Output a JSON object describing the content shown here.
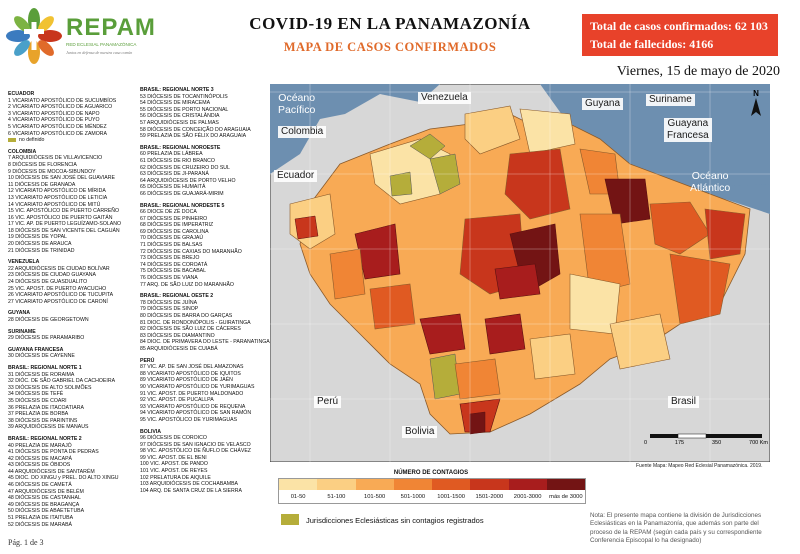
{
  "header": {
    "brand": "REPAM",
    "brand_sub": "RED ECLESIAL PANAMAZÓNICA",
    "brand_motto": "Juntos en defensa de nuestra casa común",
    "title": "COVID-19 EN LA PANAMAZONÍA",
    "subtitle": "MAPA DE CASOS CONFIRMADOS",
    "total_cases": "Total de casos confirmados: 62 103",
    "total_deaths": "Total de fallecidos: 4166",
    "date": "Viernes, 15 de mayo de 2020"
  },
  "colors": {
    "accent": "#e8422a",
    "brand": "#5a9e3a",
    "no_contagion": "#b5ad3a",
    "water": "#6d8fb0",
    "land": "#d7d7d7"
  },
  "index_left": {
    "ecuador_title": "ECUADOR",
    "ecuador": [
      "1 VICARIATO APOSTÓLICO DE SUCUMBÍOS",
      "2 VICARIATO APOSTÓLICO DE AGUARICO",
      "3 VICARIATO APOSTÓLICO DE NAPO",
      "4 VICARIATO APOSTÓLICO DE PUYO",
      "5 VICARIATO APOSTÓLICO DE MÉNDEZ",
      "6 VICARIATO APOSTÓLICO DE ZAMORA"
    ],
    "nd_label": "no definido",
    "colombia_title": "COLOMBIA",
    "colombia": [
      "7 ARQUIDIÓCESIS DE VILLAVICENCIO",
      "8 DIÓCESIS DE FLORENCIA",
      "9 DIÓCESIS DE MOCOA-SIBUNDOY",
      "10 DIÓCESIS DE SAN JOSÉ DEL GUAVIARE",
      "11 DIÓCESIS DE GRANADA",
      "12 VICARIATO APOSTÓLICO DE MÍRIDA",
      "13 VICARIATO APOSTÓLICO DE LETICIA",
      "14 VICARIATO APOSTÓLICO DE MITÚ",
      "15 VIC. APOSTÓLICO DE PUERTO CARREÑO",
      "16 VIC. APOSTÓLICO DE PUERTO GAITÁN",
      "17 VIC. AP. DE PUERTO LEGUÍZAMO-SOLANO",
      "18 DIÓCESIS DE SAN VICENTE DEL CAGUÁN",
      "19 DIÓCESIS DE YOPAL",
      "20 DIÓCESIS DE ARAUCA",
      "21 DIÓCESIS DE TRINIDAD"
    ],
    "venezuela_title": "VENEZUELA",
    "venezuela": [
      "22 ARQUIDIÓCESIS DE CIUDAD BOLÍVAR",
      "23 DIÓCESIS DE CIUDAD GUAYANA",
      "24 DIÓCESIS DE GUASDUALITO",
      "25 VIC. APOST. DE PUERTO AYACUCHO",
      "26 VICARIATO APOSTÓLICO DE TUCUPITA",
      "27 VICARIATO APOSTÓLICO DE CARONÍ"
    ],
    "guyana_title": "GUYANA",
    "guyana": [
      "28 DIÓCESIS DE GEORGETOWN"
    ],
    "suriname_title": "SURINAME",
    "suriname": [
      "29 DIÓCESIS DE PARAMARIBO"
    ],
    "guayana_title": "GUAYANA FRANCESA",
    "guayana": [
      "30 DIÓCESIS DE CAYENNE"
    ],
    "brasil1_title": "BRASIL: REGIONAL NORTE 1",
    "brasil1": [
      "31 DIÓCESIS DE RORAIMA",
      "32 DIÓC. DE SÃO GABRIEL DA CACHOEIRA",
      "33 DIÓCESIS DE ALTO SOLIMÕES",
      "34 DIÓCESIS DE TEFÉ",
      "35 DIÓCESIS DE COARI",
      "36 PRELAZIA DE ITACOATIARA",
      "37 PRELAZIA DE BORBA",
      "38 DIÓCESIS DE PARINTINS",
      "39 ARQUIDIÓCESIS DE MANAUS"
    ],
    "brasil2_title": "BRASIL: REGIONAL NORTE 2",
    "brasil2": [
      "40 PRELAZIA DE MARAJÓ",
      "41 DIÓCESIS DE PONTA DE PEDRAS",
      "42 DIÓCESIS DE MACAPÁ",
      "43 DIÓCESIS DE ÓBIDOS",
      "44 ARQUIDIÓCESIS DE SANTARÉM",
      "45 DIOC. DO XINGU y PREL. DO ALTO XINGU",
      "46 DIÓCESIS DE CAMETÁ",
      "47 ARQUIDIÓCESIS DE BELÉM",
      "48 DIÓCESIS DE CASTANHAL",
      "49 DIÓCESIS DE BRAGANÇA",
      "50 DIÓCESIS DE ABAETETUBA",
      "51 PRELAZIA DE ITAITUBA",
      "52 DIÓCESIS DE MARABÁ"
    ]
  },
  "index_right": {
    "brasil3_title": "BRASIL: REGIONAL NORTE 3",
    "brasil3": [
      "53 DIÓCESIS DE TOCANTINÓPOLIS",
      "54 DIÓCESIS DE MIRACEMA",
      "55 DIÓCESIS DE PORTO NACIONAL",
      "56 DIÓCESIS DE CRISTALÂNDIA",
      "57 ARQUIDIÓCESIS DE PALMAS",
      "58 DIÓCESIS DE CONCEIÇÃO DO ARAGUAIA",
      "59 PRELAZIA DE SÃO FÉLIX DO ARAGUAIA"
    ],
    "noroeste_title": "BRASIL: REGIONAL NOROESTE",
    "noroeste": [
      "60 PRELAZIA DE LÁBREA",
      "61 DIÓCESIS DE RIO BRANCO",
      "62 DIÓCESIS DE CRUZEIRO DO SUL",
      "63 DIÓCESIS DE JI-PARANÁ",
      "64 ARQUIDIÓCESIS DE PORTO VELHO",
      "65 DIÓCESIS DE HUMAITÁ",
      "66 DIÓCESIS DE GUAJARÁ-MIRIM"
    ],
    "nordeste5_title": "BRASIL: REGIONAL NORDESTE 5",
    "nordeste5": [
      "66 DIOCE DE ZÉ DOCA",
      "67 DIÓCESIS DE PINHEIRO",
      "68 DIÓCESIS DE IMPERATRIZ",
      "69 DIÓCESIS DE CAROLINA",
      "70 DIÓCESIS DE GRAJAÚ",
      "71 DIÓCESIS DE BALSAS",
      "72 DIÓCESIS DE CAXIAS DO MARANHÃO",
      "73 DIÓCESIS DE BREJO",
      "74 DIÓCESIS DE COROATÁ",
      "75 DIÓCESIS DE BACABAL",
      "76 DIÓCESIS DE VIANA",
      "77 ARQ. DE SÃO LUIZ DO MARANHÃO"
    ],
    "oeste2_title": "BRASIL: REGIONAL OESTE 2",
    "oeste2": [
      "78 DIÓCESIS DE JUÍNA",
      "79 DIÓCESIS DE SINOP",
      "80 DIÓCESIS DE BARRA DO GARÇAS",
      "81 DIOC. DE RONDONÓPOLIS - GUIRATINGA",
      "82 DIÓCESIS DE SÃO LUIZ DE CÁCERES",
      "83 DIÓCESIS DE DIAMANTINO",
      "84 DIOC. DE PRIMAVERA DO LESTE - PARANATINGA",
      "85 ARQUIDIÓCESIS DE CUIABÁ"
    ],
    "peru_title": "PERÚ",
    "peru": [
      "87 VIC. AP. DE SAN JOSÉ DEL AMAZONAS",
      "88 VICARIATO APOSTÓLICO DE IQUITOS",
      "89 VICARIATO APOSTÓLICO DE JAÉN",
      "90 VICARIATO APOSTÓLICO DE YURIMAGUAS",
      "91 VIC. APOST. DE PUERTO MALDONADO",
      "92 VIC. APOST. DE PUCALLPA",
      "93 VICARIATO APOSTÓLICO DE REQUENA",
      "94 VICARIATO APOSTÓLICO DE SAN RAMÓN",
      "95 VIC. APOSTÓLICO DE YURIMAGUAS"
    ],
    "bolivia_title": "BOLIVIA",
    "bolivia": [
      "96 DIÓCESIS DE COROICO",
      "97 DIÓCESIS DE SAN IGNACIO DE VELASCO",
      "98 VIC. APOSTÓLICO DE ÑUFLO DE CHÁVEZ",
      "99 VIC. APOST. DE EL BENI",
      "100 VIC. APOST. DE PANDO",
      "101 VIC. APOST. DE REYES",
      "102 PRELATURA DE AIQUILE",
      "103 ARQUIDIÓCESIS DE COCHABAMBA",
      "104 ARQ. DE SANTA CRUZ DE LA SIERRA"
    ]
  },
  "map": {
    "labels": {
      "venezuela": "Venezuela",
      "guyana": "Guyana",
      "suriname": "Suriname",
      "guayana_francesa_1": "Guayana",
      "guayana_francesa_2": "Francesa",
      "colombia": "Colombia",
      "ecuador": "Ecuador",
      "peru": "Perú",
      "bolivia": "Bolivia",
      "brasil": "Brasil"
    },
    "seas": {
      "pacifico_1": "Océano",
      "pacifico_2": "Pacífico",
      "atlantico_1": "Océano",
      "atlantico_2": "Atlántico"
    },
    "scale_labels": [
      "0",
      "175",
      "350",
      "700 Km"
    ],
    "coords_top": [
      "75°0'0\"W",
      "70°0'0\"W",
      "65°0'0\"W",
      "60°0'0\"W",
      "55°0'0\"W",
      "50°0'0\"W",
      "45°0'0\"W"
    ],
    "coords_right": [
      "10°0'0\"N",
      "5°0'0\"N",
      "0°0'0\"",
      "5°0'0\"S",
      "10°0'0\"S",
      "15°0'0\"S"
    ]
  },
  "source": "Fuente Mapa: Mapeo Red Eclesial Panamazónica. 2019.",
  "legend": {
    "title": "NÚMERO DE CONTAGIOS",
    "classes": [
      {
        "label": "01-50",
        "color": "#fbe3a6"
      },
      {
        "label": "51-100",
        "color": "#fbcf83"
      },
      {
        "label": "101-500",
        "color": "#f8aa55"
      },
      {
        "label": "501-1000",
        "color": "#f08535"
      },
      {
        "label": "1001-1500",
        "color": "#e05a22"
      },
      {
        "label": "1501-2000",
        "color": "#c8361c"
      },
      {
        "label": "2001-3000",
        "color": "#a81d1d"
      },
      {
        "label": "más de 3000",
        "color": "#731414"
      }
    ],
    "no_contagion": "Jurisdicciones Eclesiásticas sin contagios registrados"
  },
  "note": "Nota: El presente mapa contiene la división de Jurisdicciones Eclesiásticas en la Panamazonía, que además son parte del proceso de la REPAM (según cada país y su correspondiente Conferencia Episcopal lo ha designado)",
  "page": "Pág. 1 de 3"
}
